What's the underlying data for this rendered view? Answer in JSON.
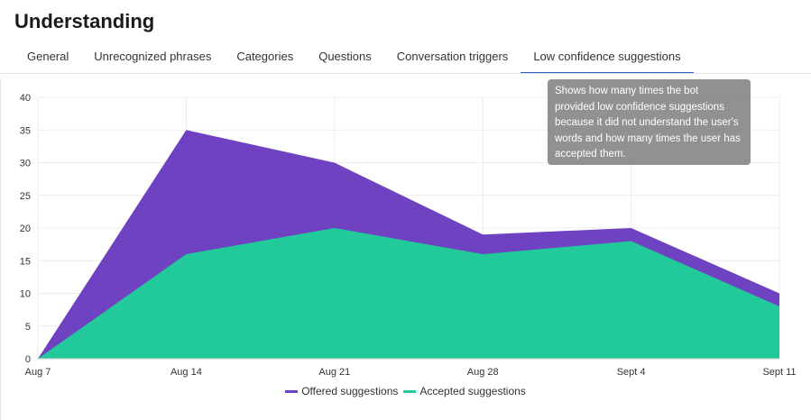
{
  "page": {
    "title": "Understanding"
  },
  "tabs": [
    {
      "label": "General",
      "active": false
    },
    {
      "label": "Unrecognized phrases",
      "active": false
    },
    {
      "label": "Categories",
      "active": false
    },
    {
      "label": "Questions",
      "active": false
    },
    {
      "label": "Conversation triggers",
      "active": false
    },
    {
      "label": "Low confidence suggestions",
      "active": true
    }
  ],
  "colors": {
    "offered": "#6e42c1",
    "accepted": "#22c99a",
    "active_tab": "#2a60c4",
    "grid": "#ececec",
    "tooltip_bg": "#888888"
  },
  "tooltip": {
    "lines": [
      "Shows how many times the bot",
      "provided low confidence suggestions",
      "because it did not understand the user's",
      "words and how many times the user has",
      "accepted them."
    ]
  },
  "chart_data": {
    "type": "area",
    "categories": [
      "Aug 7",
      "Aug 14",
      "Aug 21",
      "Aug 28",
      "Sept 4",
      "Sept 11"
    ],
    "series": [
      {
        "name": "Offered suggestions",
        "values": [
          0,
          35,
          30,
          19,
          20,
          10
        ]
      },
      {
        "name": "Accepted suggestions",
        "values": [
          0,
          16,
          20,
          16,
          18,
          8
        ]
      }
    ],
    "y_ticks": [
      0,
      5,
      10,
      15,
      20,
      25,
      30,
      35,
      40
    ],
    "ylim": [
      0,
      40
    ],
    "grid": true,
    "legend_position": "bottom-center",
    "title": "",
    "xlabel": "",
    "ylabel": ""
  }
}
